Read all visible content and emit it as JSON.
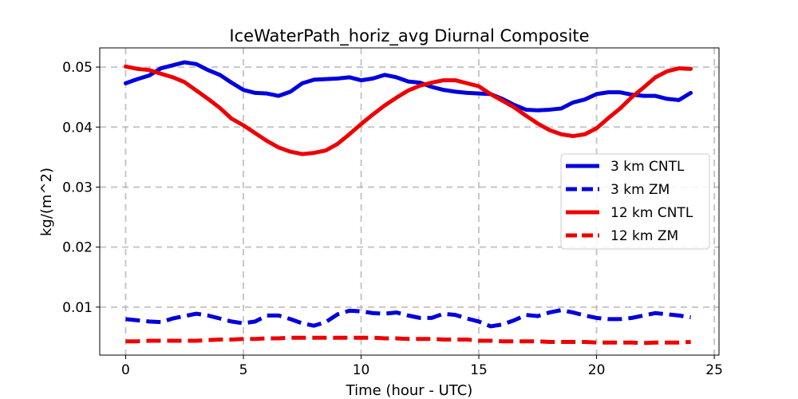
{
  "chart_data": {
    "type": "line",
    "title": "IceWaterPath_horiz_avg Diurnal Composite",
    "xlabel": "Time (hour - UTC)",
    "ylabel": "kg/(m^2)",
    "xlim": [
      -1.1,
      25.2
    ],
    "ylim": [
      0.002,
      0.0532
    ],
    "xticks": [
      0,
      5,
      10,
      15,
      20,
      25
    ],
    "xtick_labels": [
      "0",
      "5",
      "10",
      "15",
      "20",
      "25"
    ],
    "yticks": [
      0.01,
      0.02,
      0.03,
      0.04,
      0.05
    ],
    "ytick_labels": [
      "0.01",
      "0.02",
      "0.03",
      "0.04",
      "0.05"
    ],
    "grid": true,
    "legend_position": "right",
    "x": [
      0,
      0.5,
      1,
      1.5,
      2,
      2.5,
      3,
      3.5,
      4,
      4.5,
      5,
      5.5,
      6,
      6.5,
      7,
      7.5,
      8,
      8.5,
      9,
      9.5,
      10,
      10.5,
      11,
      11.5,
      12,
      12.5,
      13,
      13.5,
      14,
      14.5,
      15,
      15.5,
      16,
      16.5,
      17,
      17.5,
      18,
      18.5,
      19,
      19.5,
      20,
      20.5,
      21,
      21.5,
      22,
      22.5,
      23,
      23.5,
      24
    ],
    "series": [
      {
        "name": "3 km CNTL",
        "color": "#0000dd",
        "style": "solid",
        "values": [
          0.0473,
          0.048,
          0.0486,
          0.0498,
          0.0503,
          0.0508,
          0.0505,
          0.0495,
          0.0487,
          0.0474,
          0.0462,
          0.0457,
          0.0456,
          0.0452,
          0.0459,
          0.0473,
          0.0479,
          0.048,
          0.0481,
          0.0483,
          0.0478,
          0.0481,
          0.0487,
          0.0483,
          0.0476,
          0.0474,
          0.0467,
          0.0462,
          0.0459,
          0.0457,
          0.0456,
          0.0455,
          0.0447,
          0.0437,
          0.0429,
          0.0428,
          0.0429,
          0.0431,
          0.0441,
          0.0446,
          0.0455,
          0.0458,
          0.0458,
          0.0454,
          0.0452,
          0.0452,
          0.0447,
          0.0445,
          0.0457
        ]
      },
      {
        "name": "3 km ZM",
        "color": "#0000dd",
        "style": "dashed",
        "values": [
          0.008,
          0.0078,
          0.0076,
          0.0075,
          0.0081,
          0.0085,
          0.0089,
          0.0086,
          0.0081,
          0.0076,
          0.0073,
          0.0076,
          0.0086,
          0.0086,
          0.008,
          0.0073,
          0.0069,
          0.0075,
          0.0088,
          0.0094,
          0.0093,
          0.009,
          0.0089,
          0.0091,
          0.0086,
          0.0082,
          0.0082,
          0.0089,
          0.0087,
          0.0081,
          0.0076,
          0.0068,
          0.0071,
          0.0078,
          0.0087,
          0.0085,
          0.0091,
          0.0095,
          0.0091,
          0.0086,
          0.0082,
          0.008,
          0.008,
          0.0082,
          0.0086,
          0.009,
          0.0088,
          0.0086,
          0.0083
        ]
      },
      {
        "name": "12 km CNTL",
        "color": "#ee0000",
        "style": "solid",
        "values": [
          0.0501,
          0.0497,
          0.0495,
          0.0489,
          0.0483,
          0.0475,
          0.0461,
          0.0447,
          0.0432,
          0.0414,
          0.0403,
          0.039,
          0.0377,
          0.0366,
          0.0359,
          0.0355,
          0.0357,
          0.0361,
          0.0372,
          0.0388,
          0.0405,
          0.0421,
          0.0436,
          0.0449,
          0.0461,
          0.0469,
          0.0474,
          0.0478,
          0.0478,
          0.0473,
          0.0468,
          0.0455,
          0.0444,
          0.0433,
          0.0419,
          0.0406,
          0.0395,
          0.0388,
          0.0385,
          0.0388,
          0.0398,
          0.0415,
          0.0431,
          0.045,
          0.0466,
          0.0483,
          0.0493,
          0.0498,
          0.0497
        ]
      },
      {
        "name": "12 km ZM",
        "color": "#ee0000",
        "style": "dashed",
        "values": [
          0.0043,
          0.0043,
          0.0044,
          0.0044,
          0.0044,
          0.0044,
          0.0044,
          0.0045,
          0.0046,
          0.0046,
          0.0047,
          0.0047,
          0.0048,
          0.0048,
          0.0049,
          0.0049,
          0.0049,
          0.0049,
          0.0049,
          0.0049,
          0.0049,
          0.0049,
          0.0048,
          0.0048,
          0.0047,
          0.0047,
          0.0047,
          0.0046,
          0.0046,
          0.0046,
          0.0044,
          0.0044,
          0.0043,
          0.0043,
          0.0043,
          0.0043,
          0.0042,
          0.0042,
          0.0042,
          0.0042,
          0.0041,
          0.0041,
          0.0041,
          0.0041,
          0.004,
          0.0041,
          0.0041,
          0.0041,
          0.0042
        ]
      }
    ]
  }
}
